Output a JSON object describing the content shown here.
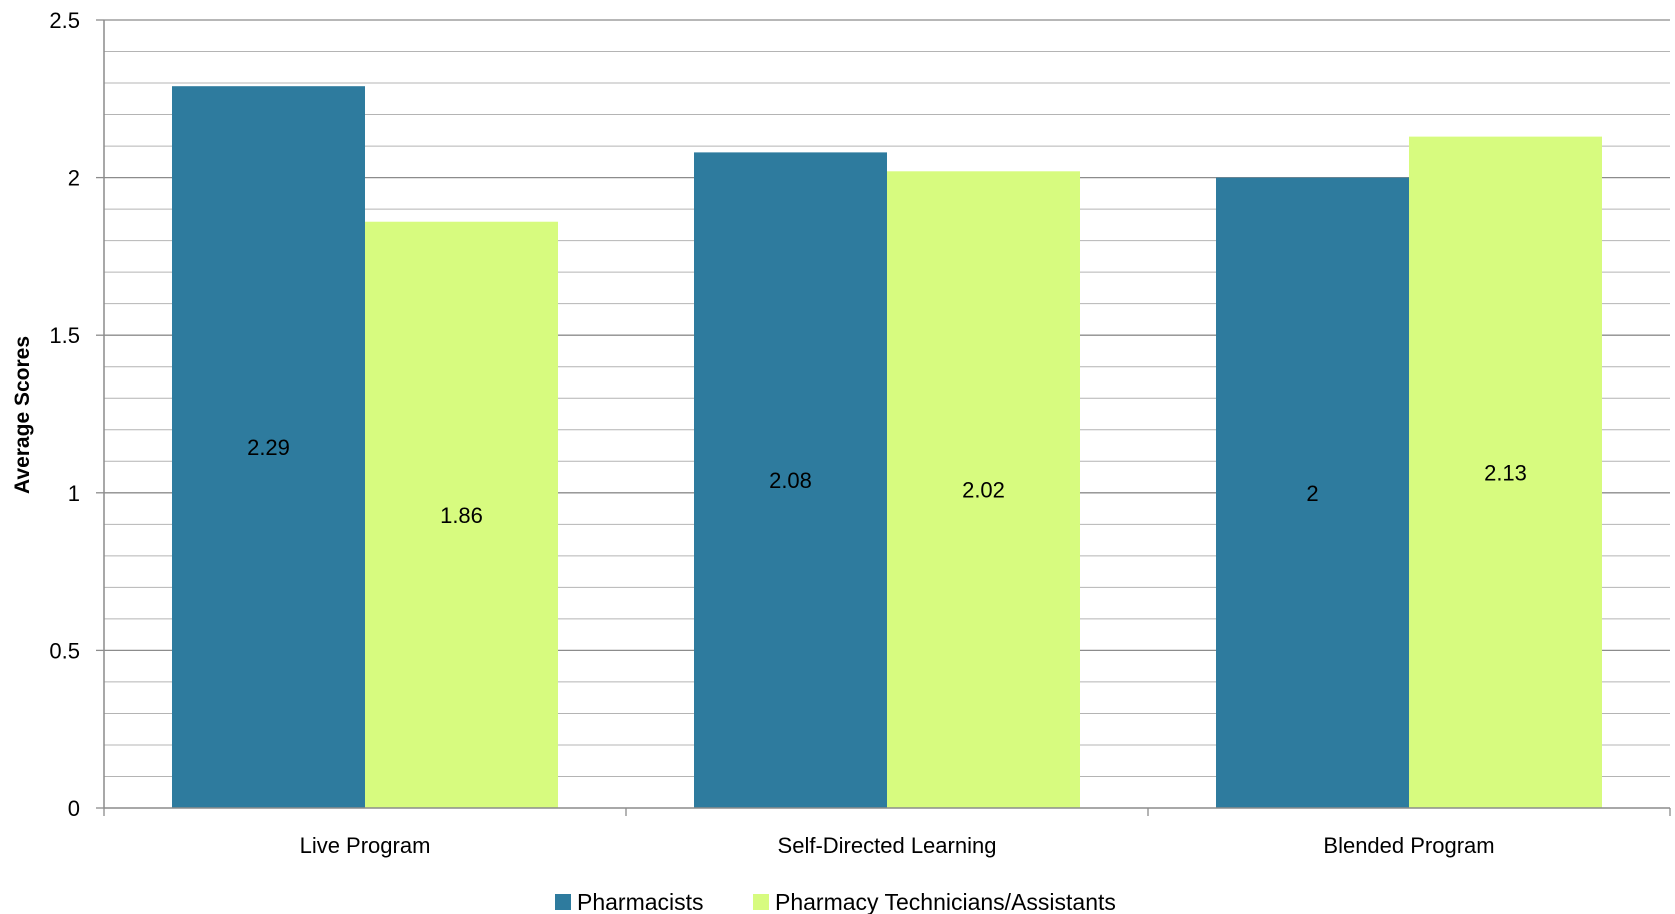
{
  "chart_data": {
    "type": "bar",
    "title": "",
    "xlabel": "",
    "ylabel": "Average Scores",
    "ylim": [
      0,
      2.5
    ],
    "yticks": [
      {
        "value": 0,
        "label": "0"
      },
      {
        "value": 0.5,
        "label": "0.5"
      },
      {
        "value": 1,
        "label": "1"
      },
      {
        "value": 1.5,
        "label": "1.5"
      },
      {
        "value": 2,
        "label": "2"
      },
      {
        "value": 2.5,
        "label": "2.5"
      }
    ],
    "minor_grid_step": 0.1,
    "grid": true,
    "legend_position": "bottom",
    "categories": [
      "Live Program",
      "Self-Directed Learning",
      "Blended Program"
    ],
    "series": [
      {
        "name": "Pharmacists",
        "color": "#2e7b9e",
        "values": [
          2.29,
          2.08,
          2
        ],
        "labels": [
          "2.29",
          "2.08",
          "2"
        ]
      },
      {
        "name": "Pharmacy Technicians/Assistants",
        "color": "#d7fb7f",
        "values": [
          1.86,
          2.02,
          2.13
        ],
        "labels": [
          "1.86",
          "2.02",
          "2.13"
        ]
      }
    ]
  }
}
